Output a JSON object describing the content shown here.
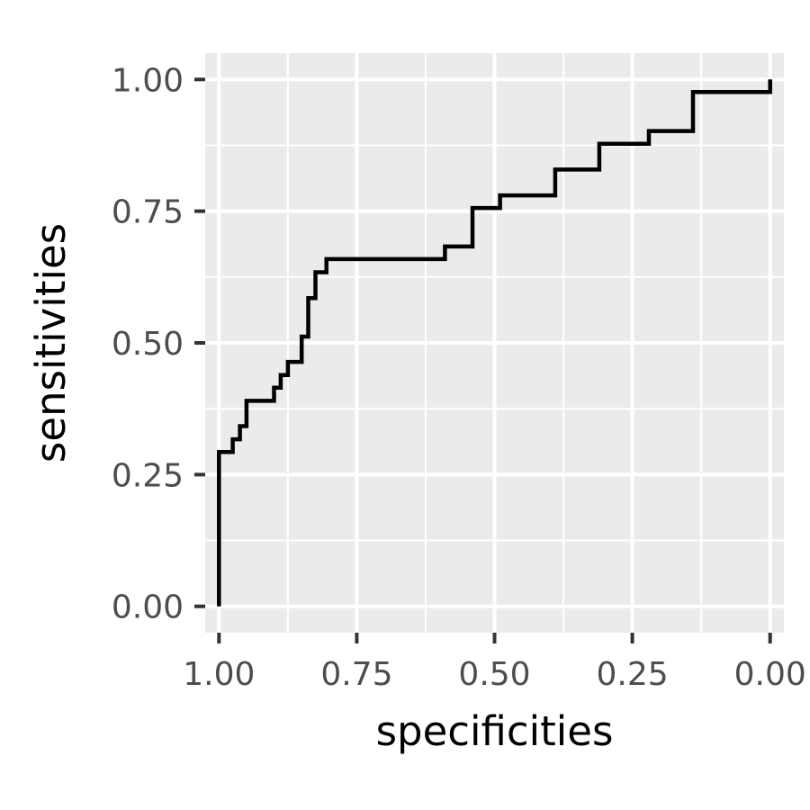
{
  "chart_data": {
    "type": "line",
    "step": true,
    "xlabel": "specificities",
    "ylabel": "sensitivities",
    "x_reversed": true,
    "xlim": [
      1.025,
      -0.025
    ],
    "ylim": [
      -0.05,
      1.05
    ],
    "x_ticks": [
      1.0,
      0.75,
      0.5,
      0.25,
      0.0
    ],
    "x_tick_labels": [
      "1.00",
      "0.75",
      "0.50",
      "0.25",
      "0.00"
    ],
    "y_ticks": [
      0.0,
      0.25,
      0.5,
      0.75,
      1.0
    ],
    "y_tick_labels": [
      "0.00",
      "0.25",
      "0.50",
      "0.75",
      "1.00"
    ],
    "grid": true,
    "colors": {
      "panel": "#ebebeb",
      "grid": "#ffffff",
      "line": "#000000",
      "tick_text": "#4d4d4d"
    },
    "series": [
      {
        "x": [
          1.0,
          1.0,
          0.975,
          0.975,
          0.962,
          0.962,
          0.95,
          0.95,
          0.9,
          0.9,
          0.888,
          0.888,
          0.875,
          0.875,
          0.85,
          0.85,
          0.838,
          0.838,
          0.825,
          0.825,
          0.805,
          0.805,
          0.7,
          0.7,
          0.59,
          0.59,
          0.54,
          0.54,
          0.49,
          0.49,
          0.39,
          0.39,
          0.31,
          0.31,
          0.22,
          0.22,
          0.14,
          0.14,
          0.0,
          0.0
        ],
        "y": [
          0.0,
          0.293,
          0.293,
          0.317,
          0.317,
          0.342,
          0.342,
          0.39,
          0.39,
          0.415,
          0.415,
          0.439,
          0.439,
          0.464,
          0.464,
          0.512,
          0.512,
          0.585,
          0.585,
          0.634,
          0.634,
          0.659,
          0.659,
          0.659,
          0.659,
          0.683,
          0.683,
          0.756,
          0.756,
          0.78,
          0.78,
          0.829,
          0.829,
          0.878,
          0.878,
          0.902,
          0.902,
          0.976,
          0.976,
          1.0
        ]
      }
    ]
  }
}
